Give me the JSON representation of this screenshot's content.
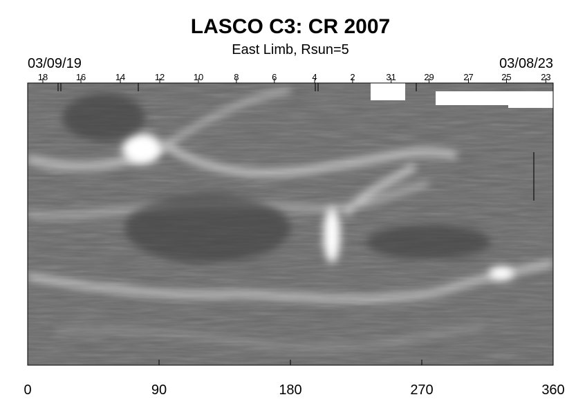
{
  "chart_data": {
    "type": "synoptic-map",
    "title": "LASCO C3: CR 2007",
    "subtitle": "East Limb, Rsun=5",
    "start_date": "03/09/19",
    "end_date": "03/08/23",
    "xlim": [
      0,
      360
    ],
    "xticks": [
      0,
      90,
      180,
      270,
      360
    ],
    "x2ticks": [
      {
        "value": 10.4,
        "label": "18"
      },
      {
        "value": 36.5,
        "label": "16"
      },
      {
        "value": 63.5,
        "label": "14"
      },
      {
        "value": 90.5,
        "label": "12"
      },
      {
        "value": 117,
        "label": "10"
      },
      {
        "value": 143,
        "label": "8"
      },
      {
        "value": 169,
        "label": "6"
      },
      {
        "value": 196.6,
        "label": "4"
      },
      {
        "value": 222.6,
        "label": "2"
      },
      {
        "value": 249,
        "label": "31"
      },
      {
        "value": 275,
        "label": "29"
      },
      {
        "value": 302,
        "label": "27"
      },
      {
        "value": 328,
        "label": "25"
      },
      {
        "value": 355,
        "label": "23"
      }
    ]
  }
}
